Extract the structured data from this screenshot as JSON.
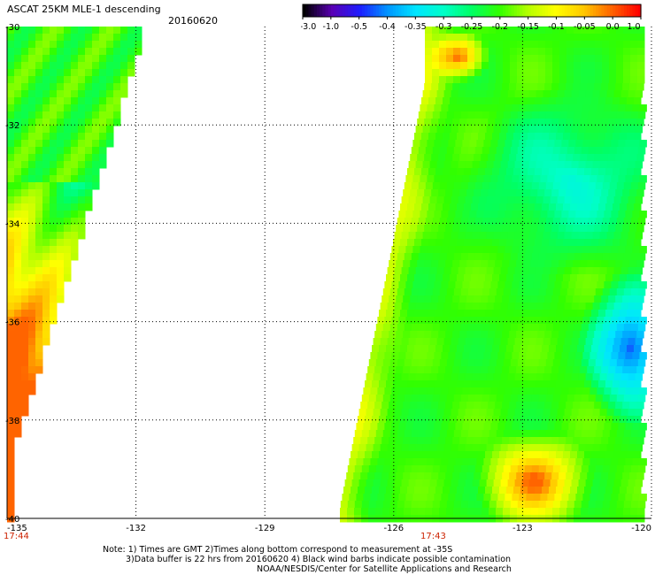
{
  "header": {
    "title": "ASCAT 25KM MLE-1 descending",
    "date": "20160620"
  },
  "colorbar": {
    "labels": [
      "-3.0",
      "-1.0",
      "-0.5",
      "-0.4",
      "-0.35",
      "-0.3",
      "-0.25",
      "-0.2",
      "-0.15",
      "-0.1",
      "-0.05",
      "0.0",
      "1.0"
    ],
    "colors": [
      "#000000",
      "#5a00b4",
      "#1e1eff",
      "#0096ff",
      "#00e6ff",
      "#00ffc8",
      "#00ff64",
      "#32ff00",
      "#b4ff00",
      "#ffff00",
      "#ffc800",
      "#ff6400",
      "#ff0000"
    ]
  },
  "axes": {
    "lon_ticks": [
      "-135",
      "-132",
      "-129",
      "-126",
      "-123",
      "-120"
    ],
    "lat_ticks": [
      "-30",
      "-32",
      "-34",
      "-36",
      "-38",
      "-40"
    ]
  },
  "times": {
    "swath_left": "17:44",
    "swath_right": "17:43"
  },
  "notes": [
    "Note: 1) Times are GMT 2)Times along bottom correspond to measurement at -35S",
    "3)Data buffer is 22 hrs from 20160620 4) Black wind barbs indicate possible contamination",
    "NOAA/NESDIS/Center for Satellite Applications and Research"
  ]
}
